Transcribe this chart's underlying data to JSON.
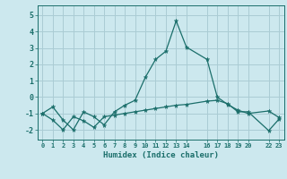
{
  "xlabel": "Humidex (Indice chaleur)",
  "background_color": "#cce8ee",
  "grid_color": "#aaccd4",
  "line_color": "#1a6e6a",
  "ylim": [
    -2.6,
    5.6
  ],
  "xlim": [
    -0.5,
    23.5
  ],
  "xticks": [
    0,
    1,
    2,
    3,
    4,
    5,
    6,
    7,
    8,
    9,
    10,
    11,
    12,
    13,
    14,
    16,
    17,
    18,
    19,
    20,
    22,
    23
  ],
  "yticks": [
    -2,
    -1,
    0,
    1,
    2,
    3,
    4,
    5
  ],
  "line1_x": [
    0,
    1,
    2,
    3,
    4,
    5,
    6,
    7,
    8,
    9,
    10,
    11,
    12,
    13,
    14,
    16,
    17,
    18,
    19,
    20,
    22,
    23
  ],
  "line1_y": [
    -1.0,
    -0.6,
    -1.4,
    -2.0,
    -0.9,
    -1.2,
    -1.7,
    -0.9,
    -0.5,
    -0.2,
    1.2,
    2.3,
    2.8,
    4.65,
    3.05,
    2.3,
    0.0,
    -0.45,
    -0.8,
    -1.0,
    -0.85,
    -1.25
  ],
  "line2_x": [
    0,
    1,
    2,
    3,
    4,
    5,
    6,
    7,
    8,
    9,
    10,
    11,
    12,
    13,
    14,
    16,
    17,
    18,
    19,
    20,
    22,
    23
  ],
  "line2_y": [
    -1.0,
    -1.4,
    -2.0,
    -1.2,
    -1.45,
    -1.85,
    -1.2,
    -1.1,
    -1.0,
    -0.9,
    -0.8,
    -0.7,
    -0.6,
    -0.5,
    -0.45,
    -0.25,
    -0.2,
    -0.4,
    -0.9,
    -0.9,
    -2.05,
    -1.35
  ]
}
